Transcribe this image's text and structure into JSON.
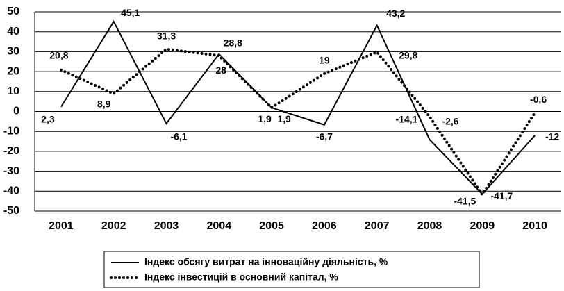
{
  "chart_data": {
    "type": "line",
    "categories": [
      "2001",
      "2002",
      "2003",
      "2004",
      "2005",
      "2006",
      "2007",
      "2008",
      "2009",
      "2010"
    ],
    "series": [
      {
        "name": "Індекс обсягу витрат на інноваційну діяльність, %",
        "color": "#000000",
        "style": "solid",
        "values": [
          2.3,
          45.1,
          -6.1,
          28.8,
          1.9,
          -6.7,
          43.2,
          -14.1,
          -41.5,
          -12
        ],
        "value_labels": [
          "2,3",
          "45,1",
          "-6,1",
          "28,8",
          "1,9",
          "-6,7",
          "43,2",
          "-14,1",
          "-41,5",
          "-12"
        ]
      },
      {
        "name": "Індекс інвестицій в основний капітал, %",
        "color": "#000000",
        "style": "dotted",
        "values": [
          20.8,
          8.9,
          31.3,
          28,
          1.9,
          19,
          29.8,
          -2.6,
          -41.7,
          -0.6
        ],
        "value_labels": [
          "20,8",
          "8,9",
          "31,3",
          "28",
          "1,9",
          "19",
          "29,8",
          "-2,6",
          "-41,7",
          "-0,6"
        ]
      }
    ],
    "ylim": [
      -50,
      50
    ],
    "yticks": [
      -50,
      -40,
      -30,
      -20,
      -10,
      0,
      10,
      20,
      30,
      40,
      50
    ],
    "grid": true,
    "legend": "bottom"
  }
}
